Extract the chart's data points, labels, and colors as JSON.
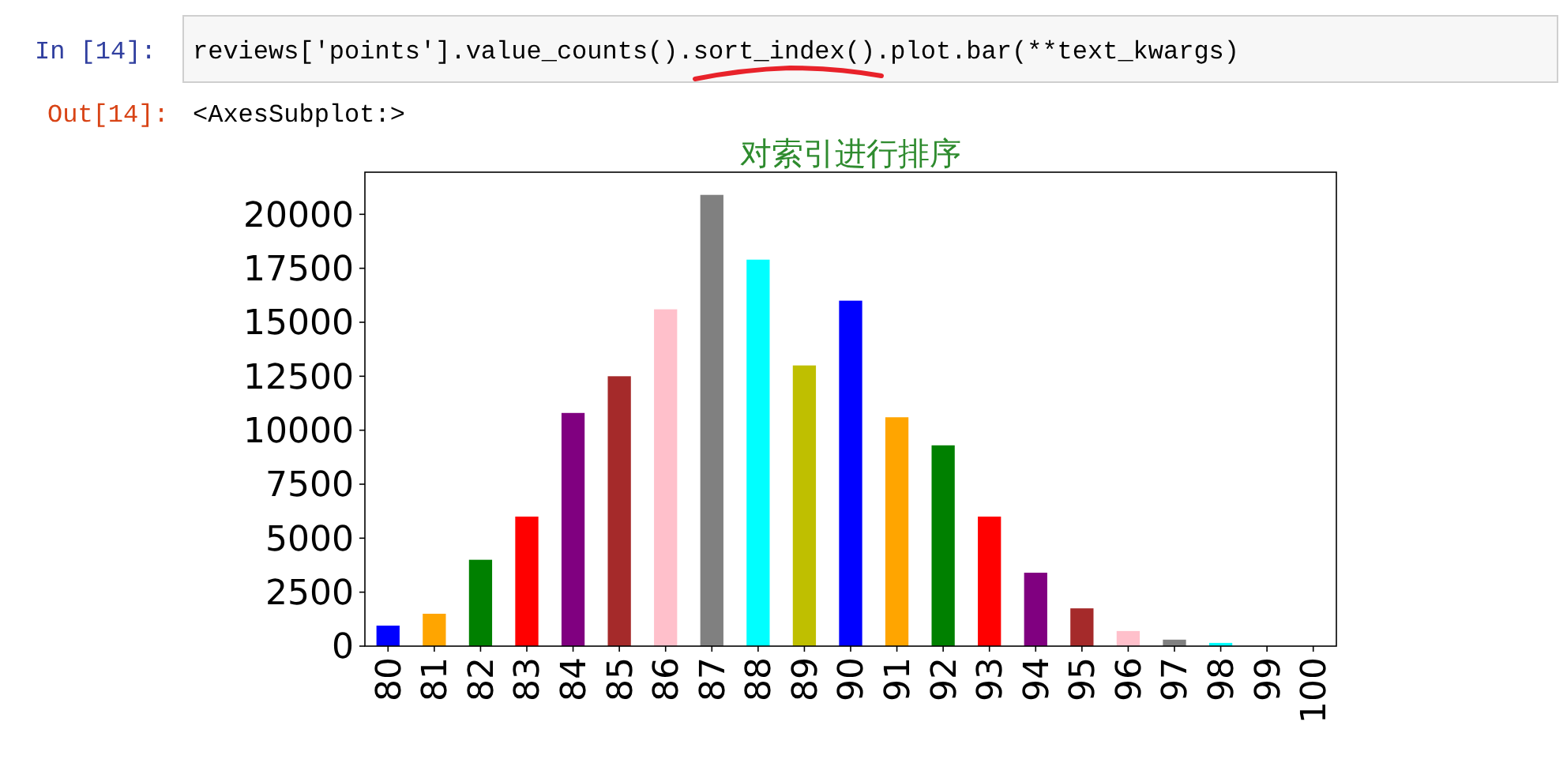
{
  "chart_data": {
    "type": "bar",
    "title": "对索引进行排序",
    "annotations": [
      "In  [14]:",
      "reviews['points'].value_counts().sort_index().plot.bar(**text_kwargs)",
      "Out[14]:",
      "<AxesSubplot:>"
    ],
    "categories": [
      "80",
      "81",
      "82",
      "83",
      "84",
      "85",
      "86",
      "87",
      "88",
      "89",
      "90",
      "91",
      "92",
      "93",
      "94",
      "95",
      "96",
      "97",
      "98",
      "99",
      "100"
    ],
    "values": [
      950,
      1500,
      4000,
      6000,
      10800,
      12500,
      15600,
      20900,
      17900,
      13000,
      16000,
      10600,
      9300,
      6000,
      3400,
      1750,
      700,
      300,
      150,
      null,
      null
    ],
    "colors": [
      "#0000ff",
      "#ffa500",
      "#008000",
      "#ff0000",
      "#800080",
      "#a52a2a",
      "#ffc0cb",
      "#808080",
      "#00ffff",
      "#bfbf00",
      "#0000ff",
      "#ffa500",
      "#008000",
      "#ff0000",
      "#800080",
      "#a52a2a",
      "#ffc0cb",
      "#808080",
      "#00ffff",
      null,
      null
    ],
    "ylim": [
      0,
      21950
    ],
    "yticks": [
      0,
      2500,
      5000,
      7500,
      10000,
      12500,
      15000,
      17500,
      20000
    ],
    "grid": false
  }
}
